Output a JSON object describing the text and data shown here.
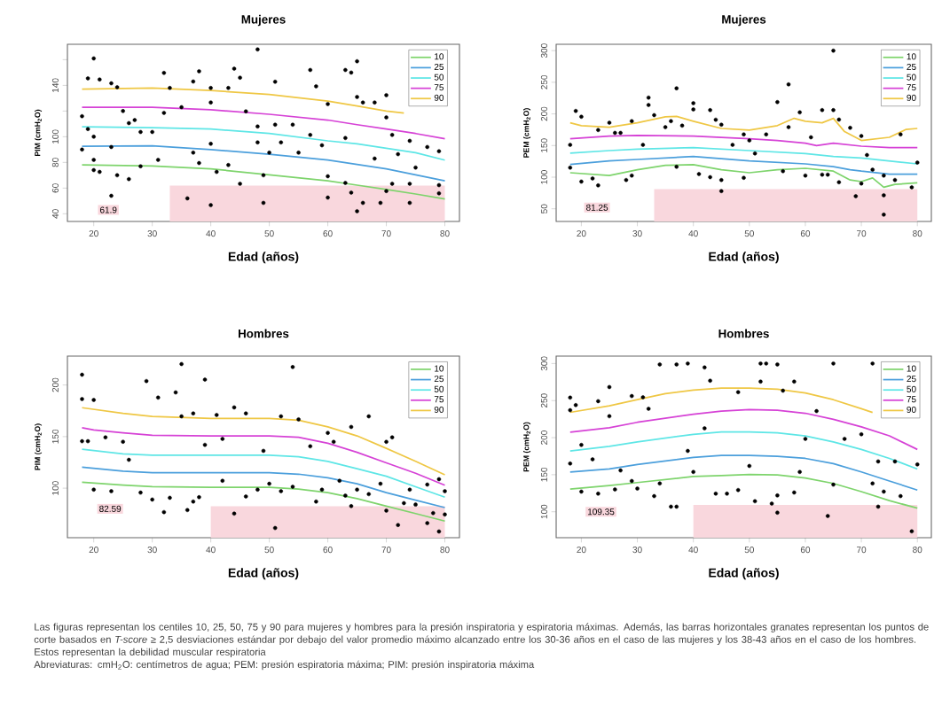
{
  "chart_data": [
    {
      "type": "scatter",
      "title": "Mujeres",
      "xlabel": "Edad (años)",
      "ylabel": "PIM (cmH$_{2}$O)",
      "xlim": [
        15.5,
        82.5
      ],
      "ylim": [
        34,
        172
      ],
      "xticks": [
        20,
        30,
        40,
        50,
        60,
        70,
        80
      ],
      "yticks": [
        40,
        60,
        80,
        100,
        {
          "value": 120,
          "label": null
        },
        140,
        {
          "value": 160,
          "label": null
        }
      ],
      "legend": "top right",
      "series": [
        {
          "type": "area",
          "color": "#f9d7dd",
          "x": [
            33,
            80
          ],
          "values": [
            61.9,
            61.9
          ]
        },
        {
          "color": "#000000",
          "x": [
            20,
            19,
            21,
            23,
            24,
            18,
            18,
            19,
            20,
            20,
            20,
            21,
            23,
            23,
            24,
            26,
            25,
            26,
            27,
            28,
            28,
            30,
            31,
            32,
            33,
            32,
            35,
            37,
            38,
            37,
            38,
            40,
            40,
            40,
            41,
            43,
            44,
            45,
            43,
            45,
            46,
            48,
            48,
            48,
            49,
            50,
            51,
            51,
            52,
            54,
            55,
            57,
            58,
            57,
            60,
            60,
            59,
            63,
            64,
            65,
            63,
            63,
            65,
            66,
            68,
            68,
            70,
            70,
            71,
            71,
            72,
            74,
            74,
            75,
            77,
            79,
            79,
            36,
            40,
            49,
            60,
            65,
            66,
            69,
            74,
            79,
            64,
            70
          ],
          "values": [
            161,
            145.5,
            144.6,
            141.6,
            138.6,
            116,
            90,
            106,
            100,
            82,
            74,
            72.6,
            54,
            92,
            70,
            67,
            120,
            110.6,
            113,
            103.7,
            77,
            103.7,
            82,
            149.7,
            138,
            118.6,
            123,
            143,
            151,
            87.6,
            79.5,
            138,
            126.7,
            94.5,
            72.6,
            138,
            153,
            146,
            78,
            63.4,
            119.8,
            168,
            108,
            95.6,
            70,
            87.6,
            142.8,
            109.4,
            95.6,
            109.4,
            87.6,
            152,
            139.3,
            101.4,
            125.5,
            69.2,
            93.3,
            152,
            150,
            158.8,
            99,
            64,
            131,
            126.7,
            126.7,
            83,
            132.4,
            115,
            101.4,
            63.4,
            86.4,
            96.8,
            63.4,
            76,
            92,
            88.7,
            62.3,
            52,
            46.7,
            48.5,
            52.6,
            42,
            48.5,
            48.5,
            48.5,
            55.9,
            56.5,
            57.7
          ]
        },
        {
          "type": "line",
          "name": "10",
          "color": "#7ed46c",
          "x": [
            18,
            30,
            40,
            50,
            60,
            65,
            70,
            75,
            80
          ],
          "values": [
            78,
            77.2,
            75,
            70.3,
            65.7,
            62.3,
            58.9,
            55.4,
            51.5
          ]
        },
        {
          "type": "line",
          "name": "25",
          "color": "#4b9fdc",
          "x": [
            18,
            30,
            40,
            50,
            60,
            65,
            70,
            75,
            80
          ],
          "values": [
            92.6,
            92.9,
            90,
            86.4,
            81.8,
            78.4,
            75,
            70.3,
            65.7
          ]
        },
        {
          "type": "line",
          "name": "50",
          "color": "#5ee6e6",
          "x": [
            18,
            30,
            40,
            50,
            60,
            65,
            70,
            75,
            80
          ],
          "values": [
            107.8,
            107,
            106,
            102.5,
            96.8,
            94.5,
            91,
            87.6,
            81.8
          ]
        },
        {
          "type": "line",
          "name": "75",
          "color": "#d642d6",
          "x": [
            18,
            30,
            40,
            50,
            60,
            65,
            70,
            75,
            80
          ],
          "values": [
            123,
            123,
            121,
            117.5,
            113,
            109.4,
            106,
            102.5,
            98.4
          ]
        },
        {
          "type": "line",
          "name": "90",
          "color": "#efc744",
          "x": [
            18,
            30,
            40,
            50,
            60,
            65,
            70,
            73
          ],
          "values": [
            137,
            138,
            136,
            133,
            127.8,
            124,
            120,
            118.5
          ]
        }
      ],
      "annotations": [
        {
          "text": "61.9",
          "x": 22.5,
          "y": 43
        }
      ]
    },
    {
      "type": "scatter",
      "title": "Mujeres",
      "xlabel": "Edad (años)",
      "ylabel": "PEM (cmH$_{2}$O)",
      "xlim": [
        15.5,
        82.5
      ],
      "ylim": [
        30,
        310
      ],
      "xticks": [
        20,
        30,
        40,
        50,
        60,
        70,
        80
      ],
      "yticks": [
        50,
        100,
        150,
        200,
        250,
        300
      ],
      "legend": "top right",
      "series": [
        {
          "type": "area",
          "color": "#f9d7dd",
          "x": [
            33,
            80
          ],
          "values": [
            81.25,
            81.25
          ]
        },
        {
          "color": "#000000",
          "x": [
            19,
            20,
            18,
            18,
            20,
            22,
            23,
            23,
            25,
            26,
            27,
            28,
            29,
            29,
            31,
            32,
            32,
            33,
            35,
            37,
            36,
            37,
            38,
            40,
            40,
            41,
            43,
            43,
            44,
            45,
            45,
            45,
            47,
            49,
            49,
            50,
            51,
            53,
            55,
            57,
            57,
            56,
            59,
            60,
            61,
            63,
            63,
            64,
            65,
            65,
            66,
            66,
            68,
            69,
            70,
            70,
            71,
            72,
            74,
            74,
            74,
            76,
            77,
            79,
            80
          ],
          "values": [
            204.7,
            195.5,
            151,
            115,
            93,
            98,
            87,
            174.5,
            186,
            170,
            170,
            95.5,
            188.5,
            102.5,
            151,
            214,
            225.7,
            198,
            179,
            240.5,
            188.5,
            116.4,
            181.5,
            217,
            207,
            105,
            206,
            100,
            190.8,
            183,
            95.5,
            78,
            151,
            99,
            167.6,
            158,
            137.4,
            167.6,
            218.7,
            246.6,
            179,
            109.5,
            202.4,
            102.5,
            163,
            206,
            104,
            104,
            300,
            206,
            191,
            92,
            178,
            70,
            165,
            90,
            135,
            111.8,
            71.4,
            40.7,
            102.5,
            95.5,
            167.6,
            84,
            123
          ]
        },
        {
          "type": "line",
          "name": "10",
          "color": "#7ed46c",
          "x": [
            18,
            25,
            30,
            35,
            40,
            45,
            50,
            55,
            60,
            65,
            68,
            70,
            72,
            74,
            76,
            80
          ],
          "values": [
            107,
            102.5,
            111.8,
            118.8,
            119.7,
            111.8,
            107,
            111.8,
            114,
            109.5,
            95.5,
            93,
            98.8,
            84,
            88.6,
            91
          ]
        },
        {
          "type": "line",
          "name": "25",
          "color": "#4b9fdc",
          "x": [
            18,
            25,
            30,
            40,
            50,
            60,
            65,
            68,
            70,
            75,
            80
          ],
          "values": [
            120,
            125.7,
            128,
            132.7,
            125.7,
            121,
            116.5,
            111.8,
            109.5,
            104.8,
            104.8
          ]
        },
        {
          "type": "line",
          "name": "50",
          "color": "#5ee6e6",
          "x": [
            18,
            25,
            30,
            40,
            50,
            60,
            65,
            70,
            75,
            80
          ],
          "values": [
            138,
            142,
            144.3,
            146.7,
            142,
            137.4,
            132.7,
            130.4,
            125.7,
            121
          ]
        },
        {
          "type": "line",
          "name": "75",
          "color": "#d642d6",
          "x": [
            18,
            25,
            30,
            40,
            50,
            55,
            60,
            62,
            65,
            70,
            75,
            80
          ],
          "values": [
            160.6,
            165,
            166,
            165,
            160.6,
            158,
            153.6,
            150,
            153.6,
            149,
            146.7,
            146.7
          ]
        },
        {
          "type": "line",
          "name": "90",
          "color": "#efc744",
          "x": [
            18,
            20,
            25,
            30,
            35,
            37,
            40,
            45,
            50,
            55,
            58,
            60,
            63,
            65,
            67,
            70,
            75,
            78,
            80
          ],
          "values": [
            186,
            181.5,
            179,
            186,
            195.5,
            196,
            188.5,
            177,
            174.5,
            181.5,
            193,
            188.5,
            186,
            193,
            172,
            158,
            163,
            175.5,
            177
          ]
        }
      ],
      "annotations": [
        {
          "text": "81.25",
          "x": 22.8,
          "y": 52
        }
      ]
    },
    {
      "type": "scatter",
      "title": "Hombres",
      "xlabel": "Edad (años)",
      "ylabel": "PIM (cmH$_{2}$O)",
      "xlim": [
        15.5,
        82.5
      ],
      "ylim": [
        52,
        228
      ],
      "xticks": [
        20,
        30,
        40,
        50,
        60,
        70,
        80
      ],
      "yticks": [
        100,
        150,
        200
      ],
      "legend": "top right",
      "series": [
        {
          "type": "area",
          "color": "#f9d7dd",
          "x": [
            40,
            80
          ],
          "values": [
            82.59,
            82.59
          ]
        },
        {
          "color": "#000000",
          "x": [
            18,
            18,
            20,
            18,
            19,
            20,
            22,
            23,
            25,
            26,
            28,
            29,
            30,
            31,
            32,
            33,
            34,
            35,
            35,
            36,
            37,
            37,
            38,
            39,
            39,
            41,
            42,
            42,
            44,
            44,
            46,
            46,
            48,
            49,
            50,
            51,
            52,
            52,
            54,
            54,
            55,
            57,
            58,
            59,
            60,
            61,
            62,
            63,
            64,
            64,
            65,
            67,
            67,
            69,
            70,
            70,
            71,
            72,
            73,
            74,
            75,
            77,
            77,
            78,
            79,
            80,
            80,
            79
          ],
          "values": [
            210,
            186.4,
            185.5,
            145.5,
            145.5,
            98.6,
            149.3,
            97.1,
            145,
            127.5,
            95.7,
            203.8,
            89,
            187.8,
            76.8,
            90.7,
            192.8,
            220.3,
            169.6,
            78.8,
            172.5,
            87,
            91.3,
            205.2,
            142,
            171,
            147.8,
            107.2,
            178.3,
            75.4,
            92,
            172.5,
            98.6,
            136.2,
            104.3,
            61.4,
            169.6,
            97.1,
            217.4,
            101.4,
            166.7,
            140.6,
            87,
            98.6,
            153.6,
            144.9,
            107.2,
            92.8,
            159.4,
            82.6,
            98.6,
            169.6,
            94.2,
            104.3,
            144.9,
            78.3,
            149.3,
            64.3,
            85.5,
            98.6,
            84.1,
            103.5,
            66.1,
            75.9,
            58,
            97.1,
            74.5,
            108.7
          ]
        },
        {
          "type": "line",
          "name": "10",
          "color": "#7ed46c",
          "x": [
            18,
            25,
            30,
            40,
            50,
            55,
            60,
            65,
            70,
            75,
            80
          ],
          "values": [
            105.8,
            102.9,
            101.4,
            100.9,
            100.9,
            99.1,
            95.7,
            89.9,
            82.6,
            75.4,
            68.1
          ]
        },
        {
          "type": "line",
          "name": "25",
          "color": "#4b9fdc",
          "x": [
            18,
            25,
            30,
            40,
            50,
            55,
            60,
            65,
            70,
            75,
            80
          ],
          "values": [
            120.3,
            116.5,
            115,
            115,
            115,
            113.6,
            110,
            104.3,
            95.7,
            88.4,
            81.2
          ]
        },
        {
          "type": "line",
          "name": "50",
          "color": "#5ee6e6",
          "x": [
            18,
            25,
            30,
            40,
            50,
            55,
            60,
            65,
            70,
            75,
            80
          ],
          "values": [
            137.7,
            133.3,
            131.9,
            131.9,
            131.9,
            130.4,
            126,
            118.8,
            111.6,
            101.4,
            91.3
          ]
        },
        {
          "type": "line",
          "name": "75",
          "color": "#d642d6",
          "x": [
            18,
            20,
            25,
            30,
            40,
            50,
            55,
            60,
            65,
            70,
            75,
            80
          ],
          "values": [
            158.6,
            156.5,
            153.6,
            151.3,
            150.7,
            150.7,
            149.3,
            143.5,
            134.8,
            124.6,
            114.5,
            102.9
          ]
        },
        {
          "type": "line",
          "name": "90",
          "color": "#efc744",
          "x": [
            18,
            25,
            30,
            40,
            50,
            55,
            60,
            65,
            70,
            75,
            80
          ],
          "values": [
            178,
            172.5,
            169.6,
            167.5,
            167.5,
            165.8,
            159.4,
            150.7,
            138.6,
            126,
            113
          ]
        }
      ],
      "annotations": [
        {
          "text": "82.59",
          "x": 22.8,
          "y": 80
        }
      ]
    },
    {
      "type": "scatter",
      "title": "Hombres",
      "xlabel": "Edad (años)",
      "ylabel": "PEM (cmH$_{2}$O)",
      "xlim": [
        15.5,
        82.5
      ],
      "ylim": [
        65,
        310
      ],
      "xticks": [
        20,
        30,
        40,
        50,
        60,
        70,
        80
      ],
      "yticks": [
        100,
        150,
        200,
        250,
        300
      ],
      "legend": "top right",
      "series": [
        {
          "type": "area",
          "color": "#f9d7dd",
          "x": [
            40,
            80
          ],
          "values": [
            109.35,
            109.35
          ]
        },
        {
          "color": "#000000",
          "x": [
            18,
            18,
            18,
            19,
            20,
            20,
            22,
            23,
            23,
            25,
            25,
            26,
            27,
            29,
            29,
            30,
            31,
            32,
            33,
            34,
            34,
            36,
            37,
            37,
            39,
            39,
            40,
            42,
            43,
            42,
            44,
            46,
            48,
            48,
            50,
            51,
            52,
            52,
            54,
            55,
            55,
            53,
            55,
            56,
            58,
            58,
            59,
            60,
            62,
            64,
            65,
            65,
            67,
            70,
            72,
            72,
            73,
            74,
            76,
            77,
            79,
            80,
            73
          ],
          "values": [
            254,
            237,
            165,
            243.9,
            127.2,
            190.2,
            170.7,
            249.2,
            124.4,
            268.3,
            228.9,
            130,
            155.7,
            256.1,
            141.5,
            131.3,
            254.5,
            239,
            121.1,
            298.8,
            138.2,
            106.9,
            298.8,
            106.9,
            300,
            182.1,
            153.7,
            294.7,
            276.8,
            212.6,
            124.4,
            124.4,
            261.4,
            129.3,
            161.8,
            114.2,
            275.6,
            300,
            111,
            122,
            98.8,
            300,
            298.8,
            263.4,
            275.6,
            126,
            153.7,
            198.4,
            235.8,
            94.3,
            300,
            136.6,
            198.4,
            204.5,
            300,
            138.2,
            106.9,
            127.2,
            167.9,
            121.1,
            73.6,
            163.8,
            167.9
          ]
        },
        {
          "type": "line",
          "name": "10",
          "color": "#7ed46c",
          "x": [
            18,
            25,
            30,
            40,
            45,
            50,
            55,
            60,
            65,
            70,
            75,
            80
          ],
          "values": [
            130.5,
            135.4,
            139.4,
            147.6,
            148.8,
            150.4,
            149.6,
            145.5,
            138.2,
            127.2,
            115,
            104.9
          ]
        },
        {
          "type": "line",
          "name": "25",
          "color": "#4b9fdc",
          "x": [
            18,
            25,
            30,
            40,
            45,
            50,
            55,
            60,
            65,
            70,
            75,
            80
          ],
          "values": [
            153.7,
            157.7,
            163.8,
            173.2,
            176,
            176,
            174.8,
            172,
            165,
            153.7,
            141.5,
            129.3
          ]
        },
        {
          "type": "line",
          "name": "50",
          "color": "#5ee6e6",
          "x": [
            18,
            25,
            30,
            40,
            45,
            50,
            55,
            60,
            65,
            70,
            75,
            80
          ],
          "values": [
            182.1,
            188.2,
            194.3,
            204.5,
            207.7,
            207.7,
            206.5,
            202.4,
            194.3,
            184.1,
            172,
            157.7
          ]
        },
        {
          "type": "line",
          "name": "75",
          "color": "#d642d6",
          "x": [
            18,
            25,
            30,
            40,
            45,
            50,
            55,
            60,
            65,
            70,
            75,
            80
          ],
          "values": [
            207.3,
            213.4,
            220.7,
            231.7,
            235.8,
            237.8,
            237,
            232.9,
            224.8,
            214.6,
            202.4,
            184.1
          ]
        },
        {
          "type": "line",
          "name": "90",
          "color": "#efc744",
          "x": [
            18,
            25,
            30,
            35,
            40,
            45,
            50,
            55,
            60,
            65,
            70,
            72
          ],
          "values": [
            234.1,
            243,
            251.2,
            259.3,
            264.2,
            266.7,
            266.7,
            265.4,
            260.2,
            251.2,
            239,
            234
          ]
        }
      ],
      "annotations": [
        {
          "text": "109.35",
          "x": 23.5,
          "y": 100
        },
        "Las figuras representan los centiles 10, 25, 50, 75 y 90 para mujeres y hombres para la presión inspiratoria y espiratoria máximas. Además, las barras horizontales granates representan los puntos de corte basados en *T-score* ≥ 2,5 desviaciones estándar por debajo del valor promedio máximo alcanzado entre los 30-36 años en el caso de las mujeres y los 38-43 años en el caso de los hombres. Estos representan la debilidad muscular respiratoria",
        "Abreviaturas: cmH$_{2}$O: centímetros de agua; PEM: presión espiratoria máxima; PIM: presión inspiratoria máxima"
      ]
    }
  ]
}
